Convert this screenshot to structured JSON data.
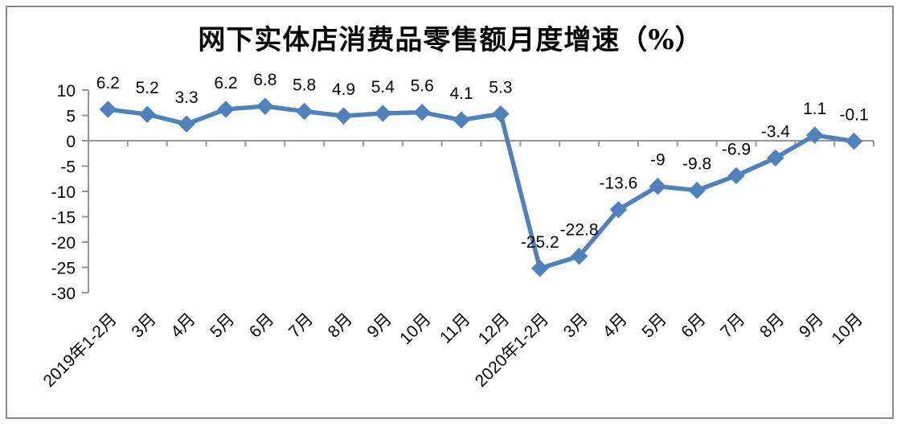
{
  "title": "网下实体店消费品零售额月度增速（%）",
  "colors": {
    "line": "#4F81BD",
    "marker": "#4F81BD",
    "axis": "#969696",
    "frame_border": "#8a8a8a",
    "text": "#000000"
  },
  "chart_data": {
    "type": "line",
    "title": "网下实体店消费品零售额月度增速（%）",
    "categories": [
      "2019年1-2月",
      "3月",
      "4月",
      "5月",
      "6月",
      "7月",
      "8月",
      "9月",
      "10月",
      "11月",
      "12月",
      "2020年1-2月",
      "3月",
      "4月",
      "5月",
      "6月",
      "7月",
      "8月",
      "9月",
      "10月"
    ],
    "values": [
      6.2,
      5.2,
      3.3,
      6.2,
      6.8,
      5.8,
      4.9,
      5.4,
      5.6,
      4.1,
      5.3,
      -25.2,
      -22.8,
      -13.6,
      -9,
      -9.8,
      -6.9,
      -3.4,
      1.1,
      -0.1
    ],
    "data_labels": [
      "6.2",
      "5.2",
      "3.3",
      "6.2",
      "6.8",
      "5.8",
      "4.9",
      "5.4",
      "5.6",
      "4.1",
      "5.3",
      "-25.2",
      "-22.8",
      "-13.6",
      "-9",
      "-9.8",
      "-6.9",
      "-3.4",
      "1.1",
      "-0.1"
    ],
    "y_ticks": [
      10,
      5,
      0,
      -5,
      -10,
      -15,
      -20,
      -25,
      -30
    ],
    "ylim": [
      -30,
      10
    ],
    "xlabel": "",
    "ylabel": "",
    "grid": false,
    "legend": "none",
    "marker_shape": "diamond",
    "x_label_rotation_deg": -45
  }
}
